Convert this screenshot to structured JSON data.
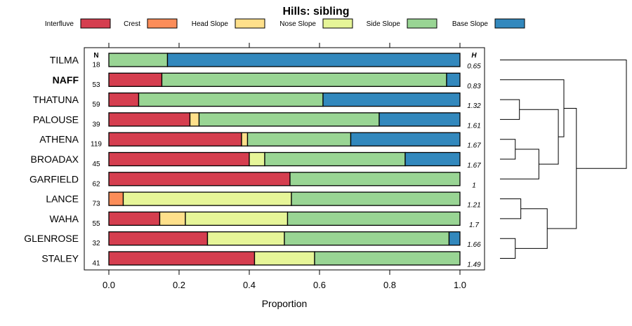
{
  "chart_data": {
    "type": "bar",
    "subtype": "stacked-horizontal-proportion",
    "title": "Hills: sibling",
    "xlabel": "Proportion",
    "xlim": [
      0,
      1
    ],
    "x_ticks": [
      "0.0",
      "0.2",
      "0.4",
      "0.6",
      "0.8",
      "1.0"
    ],
    "n_header": "N",
    "h_header": "H",
    "legend_position": "top",
    "series": [
      {
        "name": "Interfluve",
        "color": "#d53e4f"
      },
      {
        "name": "Crest",
        "color": "#fc8d59"
      },
      {
        "name": "Head Slope",
        "color": "#fee08b"
      },
      {
        "name": "Nose Slope",
        "color": "#e6f598"
      },
      {
        "name": "Side Slope",
        "color": "#99d594"
      },
      {
        "name": "Base Slope",
        "color": "#3288bd"
      }
    ],
    "rows": [
      {
        "label": "TILMA",
        "bold": false,
        "n": "18",
        "h": "0.65",
        "values": [
          0,
          0,
          0,
          0,
          0.167,
          0.833
        ]
      },
      {
        "label": "NAFF",
        "bold": true,
        "n": "53",
        "h": "0.83",
        "values": [
          0.151,
          0,
          0,
          0,
          0.811,
          0.038
        ]
      },
      {
        "label": "THATUNA",
        "bold": false,
        "n": "59",
        "h": "1.32",
        "values": [
          0.085,
          0,
          0,
          0,
          0.525,
          0.39
        ]
      },
      {
        "label": "PALOUSE",
        "bold": false,
        "n": "39",
        "h": "1.61",
        "values": [
          0.231,
          0,
          0.026,
          0,
          0.513,
          0.23
        ]
      },
      {
        "label": "ATHENA",
        "bold": false,
        "n": "119",
        "h": "1.67",
        "values": [
          0.378,
          0,
          0.017,
          0,
          0.294,
          0.311
        ]
      },
      {
        "label": "BROADAX",
        "bold": false,
        "n": "45",
        "h": "1.67",
        "values": [
          0.4,
          0,
          0,
          0.044,
          0.4,
          0.156
        ]
      },
      {
        "label": "GARFIELD",
        "bold": false,
        "n": "62",
        "h": "1",
        "values": [
          0.516,
          0,
          0,
          0,
          0.484,
          0
        ]
      },
      {
        "label": "LANCE",
        "bold": false,
        "n": "73",
        "h": "1.21",
        "values": [
          0,
          0.041,
          0,
          0.479,
          0.48,
          0
        ]
      },
      {
        "label": "WAHA",
        "bold": false,
        "n": "55",
        "h": "1.7",
        "values": [
          0.145,
          0,
          0.073,
          0.291,
          0.491,
          0
        ]
      },
      {
        "label": "GLENROSE",
        "bold": false,
        "n": "32",
        "h": "1.66",
        "values": [
          0.281,
          0,
          0,
          0.219,
          0.469,
          0.031
        ]
      },
      {
        "label": "STALEY",
        "bold": false,
        "n": "41",
        "h": "1.49",
        "values": [
          0.415,
          0,
          0,
          0.171,
          0.414,
          0
        ]
      }
    ],
    "dendrogram": {
      "leaves": [
        "TILMA",
        "NAFF",
        "THATUNA",
        "PALOUSE",
        "ATHENA",
        "BROADAX",
        "GARFIELD",
        "LANCE",
        "WAHA",
        "GLENROSE",
        "STALEY"
      ],
      "merges": [
        {
          "a": "THATUNA",
          "b": "PALOUSE",
          "height": 0.14
        },
        {
          "a": "ATHENA",
          "b": "BROADAX",
          "height": 0.11
        },
        {
          "a": "LANCE",
          "b": "WAHA",
          "height": 0.15
        },
        {
          "a": "GLENROSE",
          "b": "STALEY",
          "height": 0.11
        },
        {
          "a": "ATHENA+BROADAX",
          "b": "GARFIELD",
          "height": 0.28
        },
        {
          "a": "THATUNA+PALOUSE",
          "b": "ATHENA+BROADAX+GARFIELD",
          "height": 0.42
        },
        {
          "a": "LANCE+WAHA",
          "b": "GLENROSE+STALEY",
          "height": 0.34
        },
        {
          "a": "NAFF",
          "b": "THATUNA+PALOUSE+ATHENA+BROADAX+GARFIELD",
          "height": 0.46
        },
        {
          "a": "NAFF+THATUNA+PALOUSE+ATHENA+BROADAX+GARFIELD",
          "b": "LANCE+WAHA+GLENROSE+STALEY",
          "height": 0.55
        },
        {
          "a": "TILMA",
          "b": "ALL_OTHERS",
          "height": 0.91
        }
      ]
    }
  }
}
